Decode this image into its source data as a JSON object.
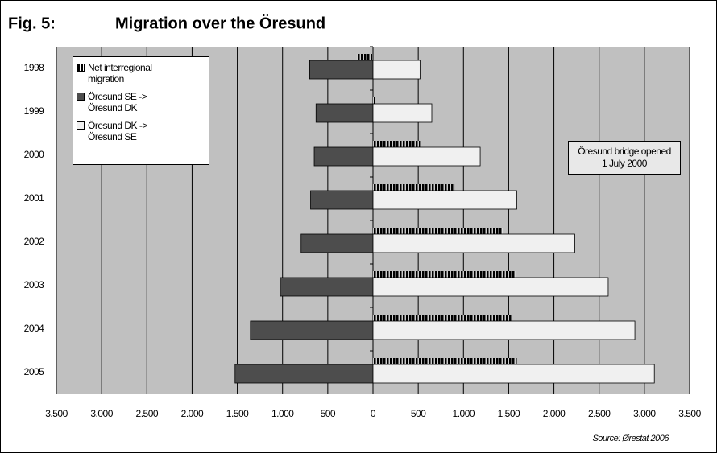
{
  "chart_data": {
    "type": "hbar",
    "figure_label": "Fig. 5:",
    "title": "Migration over the Öresund",
    "source": "Source: Ørestat 2006",
    "annotation": "Öresund bridge opened 1 July 2000",
    "categories": [
      "1998",
      "1999",
      "2000",
      "2001",
      "2002",
      "2003",
      "2004",
      "2005"
    ],
    "series": [
      {
        "name": "Net interregional migration",
        "color": "#000000",
        "values": [
          -180,
          20,
          520,
          900,
          1430,
          1575,
          1540,
          1590
        ]
      },
      {
        "name": "Öresund SE -> Öresund DK",
        "color": "#4d4d4d",
        "values": [
          -700,
          -630,
          -650,
          -690,
          -795,
          -1025,
          -1355,
          -1525
        ]
      },
      {
        "name": "Öresund DK -> Öresund SE",
        "color": "#f0f0f0",
        "values": [
          520,
          650,
          1185,
          1590,
          2230,
          2600,
          2895,
          3110
        ]
      }
    ],
    "xlim": [
      -3500,
      3500
    ],
    "xticks": [
      {
        "value": -3500,
        "label": "3.500"
      },
      {
        "value": -3000,
        "label": "3.000"
      },
      {
        "value": -2500,
        "label": "2.500"
      },
      {
        "value": -2000,
        "label": "2.000"
      },
      {
        "value": -1500,
        "label": "1.500"
      },
      {
        "value": -1000,
        "label": "1.000"
      },
      {
        "value": -500,
        "label": "500"
      },
      0,
      500,
      {
        "value": 1000,
        "label": "1.000"
      },
      {
        "value": 1500,
        "label": "1.500"
      },
      {
        "value": 2000,
        "label": "2.000"
      },
      {
        "value": 2500,
        "label": "2.500"
      },
      {
        "value": 3000,
        "label": "3.000"
      },
      {
        "value": 3500,
        "label": "3.500"
      }
    ],
    "grid": true,
    "legend": "upper left"
  }
}
